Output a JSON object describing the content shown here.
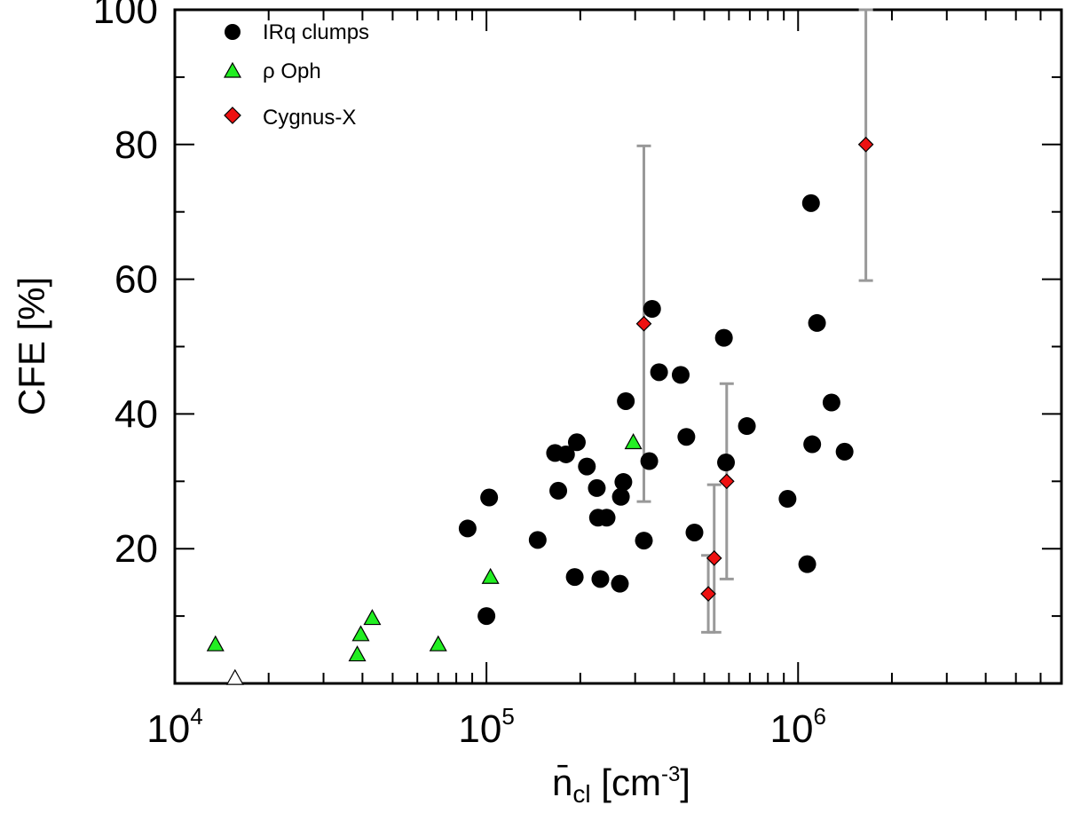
{
  "chart_data": {
    "type": "scatter",
    "title": "",
    "xlabel": {
      "main": "n̄",
      "sub": "cl",
      "unit_open": " [cm",
      "unit_exp": "-3",
      "unit_close": "]"
    },
    "ylabel": "CFE [%]",
    "xscale": "log",
    "xlim": [
      10000,
      7000000
    ],
    "ylim": [
      0,
      100
    ],
    "x_ticks": [
      {
        "value": 10000,
        "base": "10",
        "exp": "4"
      },
      {
        "value": 100000,
        "base": "10",
        "exp": "5"
      },
      {
        "value": 1000000,
        "base": "10",
        "exp": "6"
      }
    ],
    "y_ticks": [
      {
        "value": 20,
        "label": "20"
      },
      {
        "value": 40,
        "label": "40"
      },
      {
        "value": 60,
        "label": "60"
      },
      {
        "value": 80,
        "label": "80"
      },
      {
        "value": 100,
        "label": "100"
      }
    ],
    "legend": {
      "position": "top-left",
      "entries": [
        {
          "label": "IRq clumps",
          "marker": "circle",
          "color": "#000000"
        },
        {
          "label": "ρ Oph",
          "marker": "triangle",
          "color": "#22ee22"
        },
        {
          "label": "Cygnus-X",
          "marker": "diamond",
          "color": "#ee1111"
        }
      ]
    },
    "series": [
      {
        "name": "IRq clumps",
        "marker": "circle",
        "color": "#000000",
        "points": [
          [
            87000,
            23.0
          ],
          [
            100000,
            10.0
          ],
          [
            102000,
            27.6
          ],
          [
            146000,
            21.3
          ],
          [
            166000,
            34.2
          ],
          [
            170000,
            28.6
          ],
          [
            180000,
            34.0
          ],
          [
            192000,
            15.8
          ],
          [
            195000,
            35.8
          ],
          [
            210000,
            32.2
          ],
          [
            226000,
            29.0
          ],
          [
            228000,
            24.6
          ],
          [
            232000,
            15.5
          ],
          [
            243000,
            24.6
          ],
          [
            268000,
            14.8
          ],
          [
            270000,
            27.7
          ],
          [
            275000,
            29.9
          ],
          [
            280000,
            41.9
          ],
          [
            320000,
            21.2
          ],
          [
            333000,
            33.0
          ],
          [
            340000,
            55.6
          ],
          [
            358000,
            46.2
          ],
          [
            420000,
            45.8
          ],
          [
            438000,
            36.6
          ],
          [
            465000,
            22.4
          ],
          [
            578000,
            51.3
          ],
          [
            587000,
            32.8
          ],
          [
            685000,
            38.2
          ],
          [
            925000,
            27.4
          ],
          [
            1070000,
            17.7
          ],
          [
            1100000,
            71.3
          ],
          [
            1110000,
            35.5
          ],
          [
            1150000,
            53.5
          ],
          [
            1280000,
            41.7
          ],
          [
            1410000,
            34.4
          ]
        ]
      },
      {
        "name": "ρ Oph",
        "marker": "triangle",
        "color": "#22ee22",
        "points": [
          [
            13500,
            5.8
          ],
          [
            38500,
            4.3
          ],
          [
            39500,
            7.3
          ],
          [
            43000,
            9.7
          ],
          [
            70000,
            5.8
          ],
          [
            103000,
            15.8
          ],
          [
            296000,
            35.8
          ]
        ]
      },
      {
        "name": "ρ Oph (open)",
        "marker": "triangle-open",
        "color": "#ffffff",
        "points": [
          [
            15600,
            0.8
          ]
        ]
      },
      {
        "name": "Cygnus-X",
        "marker": "diamond",
        "color": "#ee1111",
        "points": [
          {
            "x": 320000,
            "y": 53.4,
            "ylo": 27.0,
            "yhi": 79.8
          },
          {
            "x": 515000,
            "y": 13.3,
            "ylo": 7.6,
            "yhi": 19.0
          },
          {
            "x": 538000,
            "y": 18.6,
            "ylo": 7.6,
            "yhi": 29.5
          },
          {
            "x": 590000,
            "y": 30.0,
            "ylo": 15.5,
            "yhi": 44.5
          },
          {
            "x": 1650000,
            "y": 80.0,
            "ylo": 59.8,
            "yhi": 100.0
          }
        ]
      }
    ]
  }
}
